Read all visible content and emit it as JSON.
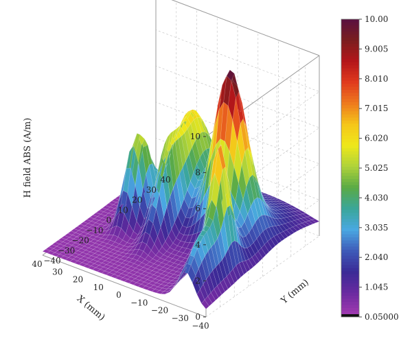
{
  "chart_data": {
    "type": "surface",
    "zlabel": "H field ABS (A/m)",
    "xlabel": "X (mm)",
    "ylabel": "Y (mm)",
    "xlim": [
      -40,
      40
    ],
    "ylim": [
      -40,
      40
    ],
    "zlim": [
      0,
      10
    ],
    "z_ticks": [
      "0",
      "2",
      "4",
      "6",
      "8",
      "10"
    ],
    "x_ticks": [
      "−40",
      "−30",
      "−20",
      "−10",
      "0",
      "10",
      "20",
      "30",
      "40"
    ],
    "y_ticks": [
      "−40",
      "−30",
      "−20",
      "−10",
      "0",
      "10",
      "20",
      "30",
      "40"
    ],
    "colorbar": {
      "min": 0.05,
      "max": 10.0,
      "labels": [
        "10.00",
        "9.005",
        "8.010",
        "7.015",
        "6.020",
        "5.025",
        "4.030",
        "3.035",
        "2.040",
        "1.045",
        "0.05000"
      ],
      "colormap": [
        "#5a1040",
        "#7a1e1e",
        "#b4161a",
        "#e03a1e",
        "#ee7a1e",
        "#f5c61a",
        "#eee81a",
        "#aed23a",
        "#5aaa46",
        "#3aa69a",
        "#4aa8e2",
        "#3e5ab8",
        "#3a2a96",
        "#6a2aa0",
        "#a03ab0",
        "#121212"
      ]
    },
    "peaks": [
      {
        "x": -18,
        "y": 8,
        "value": 9.4
      },
      {
        "x": 8,
        "y": 18,
        "value": 6.1
      },
      {
        "x": -28,
        "y": -14,
        "value": 5.6
      },
      {
        "x": 6,
        "y": -2,
        "value": 5.6
      },
      {
        "x": 18,
        "y": 0,
        "value": 4.8
      },
      {
        "x": 22,
        "y": -4,
        "value": 4.8
      },
      {
        "x": -30,
        "y": -28,
        "value": 3.2
      }
    ],
    "grid": true
  }
}
